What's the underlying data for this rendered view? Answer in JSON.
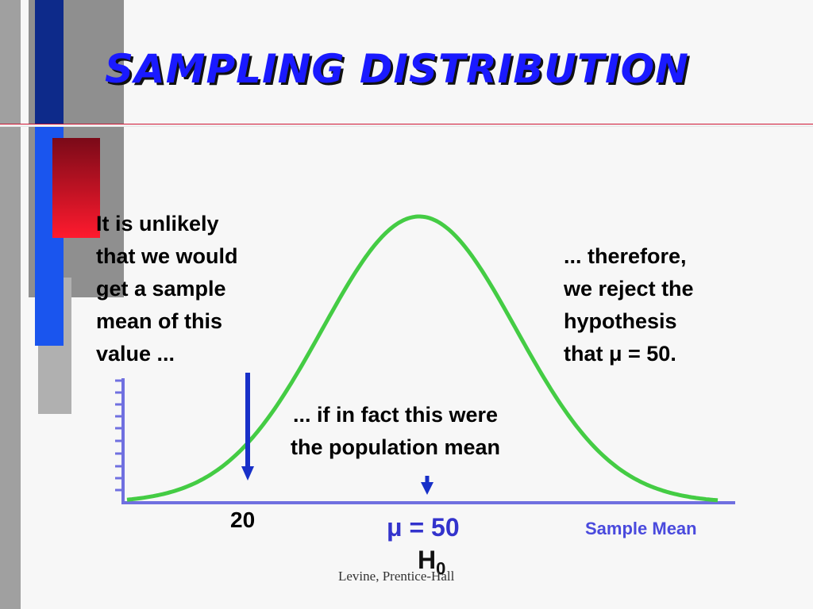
{
  "slide": {
    "title": "SAMPLING DISTRIBUTION",
    "footer": "Levine, Prentice-Hall"
  },
  "callouts": {
    "left": "It is unlikely\nthat we would\nget a sample\nmean of this\nvalue ...",
    "right": "... therefore,\nwe reject the\nhypothesis\nthat μ = 50.",
    "middle": "... if in fact this were\n the population mean"
  },
  "axis": {
    "x_label": "Sample Mean",
    "tick_label": "20",
    "mean_label": "μ = 50",
    "hypothesis_label": "H",
    "hypothesis_subscript": "0"
  },
  "colors": {
    "curve": "#44cc44",
    "axis": "#7070e0",
    "title": "#1a1aff",
    "arrow": "#1830c8",
    "accent_red": "#c8102e"
  },
  "chart_data": {
    "type": "line",
    "curve": "normal",
    "mean": 50,
    "marked_value": 20
  }
}
